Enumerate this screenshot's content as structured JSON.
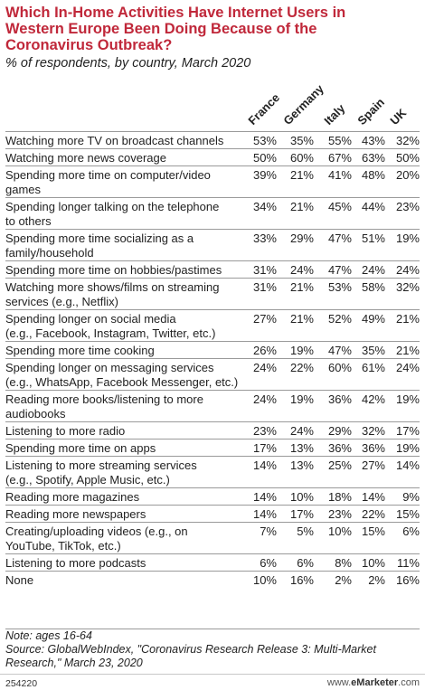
{
  "title_lines": [
    "Which In-Home Activities Have Internet Users in",
    "Western Europe Been Doing Because of the",
    "Coronavirus Outbreak?"
  ],
  "subtitle": "% of respondents, by country, March 2020",
  "chart_data": {
    "type": "table",
    "columns": [
      "France",
      "Germany",
      "Italy",
      "Spain",
      "UK"
    ],
    "unit": "%",
    "rows": [
      {
        "label": [
          "Watching more TV on broadcast channels"
        ],
        "values": [
          "53%",
          "35%",
          "55%",
          "43%",
          "32%"
        ]
      },
      {
        "label": [
          "Watching more news coverage"
        ],
        "values": [
          "50%",
          "60%",
          "67%",
          "63%",
          "50%"
        ]
      },
      {
        "label": [
          "Spending more time on computer/video",
          "games"
        ],
        "values": [
          "39%",
          "21%",
          "41%",
          "48%",
          "20%"
        ]
      },
      {
        "label": [
          "Spending longer talking on the telephone",
          "to others"
        ],
        "values": [
          "34%",
          "21%",
          "45%",
          "44%",
          "23%"
        ]
      },
      {
        "label": [
          "Spending more time socializing as a",
          "family/household"
        ],
        "values": [
          "33%",
          "29%",
          "47%",
          "51%",
          "19%"
        ]
      },
      {
        "label": [
          "Spending more time on hobbies/pastimes"
        ],
        "values": [
          "31%",
          "24%",
          "47%",
          "24%",
          "24%"
        ]
      },
      {
        "label": [
          "Watching more shows/films on streaming",
          "services (e.g., Netflix)"
        ],
        "values": [
          "31%",
          "21%",
          "53%",
          "58%",
          "32%"
        ]
      },
      {
        "label": [
          "Spending longer on social media",
          "(e.g., Facebook, Instagram, Twitter, etc.)"
        ],
        "values": [
          "27%",
          "21%",
          "52%",
          "49%",
          "21%"
        ]
      },
      {
        "label": [
          "Spending more time cooking"
        ],
        "values": [
          "26%",
          "19%",
          "47%",
          "35%",
          "21%"
        ]
      },
      {
        "label": [
          "Spending longer on messaging services",
          "(e.g., WhatsApp, Facebook Messenger, etc.)"
        ],
        "values": [
          "24%",
          "22%",
          "60%",
          "61%",
          "24%"
        ]
      },
      {
        "label": [
          "Reading more books/listening to more",
          "audiobooks"
        ],
        "values": [
          "24%",
          "19%",
          "36%",
          "42%",
          "19%"
        ]
      },
      {
        "label": [
          "Listening to more radio"
        ],
        "values": [
          "23%",
          "24%",
          "29%",
          "32%",
          "17%"
        ]
      },
      {
        "label": [
          "Spending more time on apps"
        ],
        "values": [
          "17%",
          "13%",
          "36%",
          "36%",
          "19%"
        ]
      },
      {
        "label": [
          "Listening to more streaming services",
          "(e.g., Spotify, Apple Music, etc.)"
        ],
        "values": [
          "14%",
          "13%",
          "25%",
          "27%",
          "14%"
        ]
      },
      {
        "label": [
          "Reading more magazines"
        ],
        "values": [
          "14%",
          "10%",
          "18%",
          "14%",
          "9%"
        ]
      },
      {
        "label": [
          "Reading more newspapers"
        ],
        "values": [
          "14%",
          "17%",
          "23%",
          "22%",
          "15%"
        ]
      },
      {
        "label": [
          "Creating/uploading videos (e.g., on",
          "YouTube, TikTok, etc.)"
        ],
        "values": [
          "7%",
          "5%",
          "10%",
          "15%",
          "6%"
        ]
      },
      {
        "label": [
          "Listening to more podcasts"
        ],
        "values": [
          "6%",
          "6%",
          "8%",
          "10%",
          "11%"
        ]
      },
      {
        "label": [
          "None"
        ],
        "values": [
          "10%",
          "16%",
          "2%",
          "2%",
          "16%"
        ]
      }
    ]
  },
  "note": "Note: ages 16-64",
  "source_lines": [
    "Source: GlobalWebIndex, \"Coronavirus Research Release 3: Multi-Market",
    "Research,\" March 23, 2020"
  ],
  "chart_id": "254220",
  "brand": {
    "prefix": "www.",
    "name": "eMarketer",
    "suffix": ".com"
  }
}
